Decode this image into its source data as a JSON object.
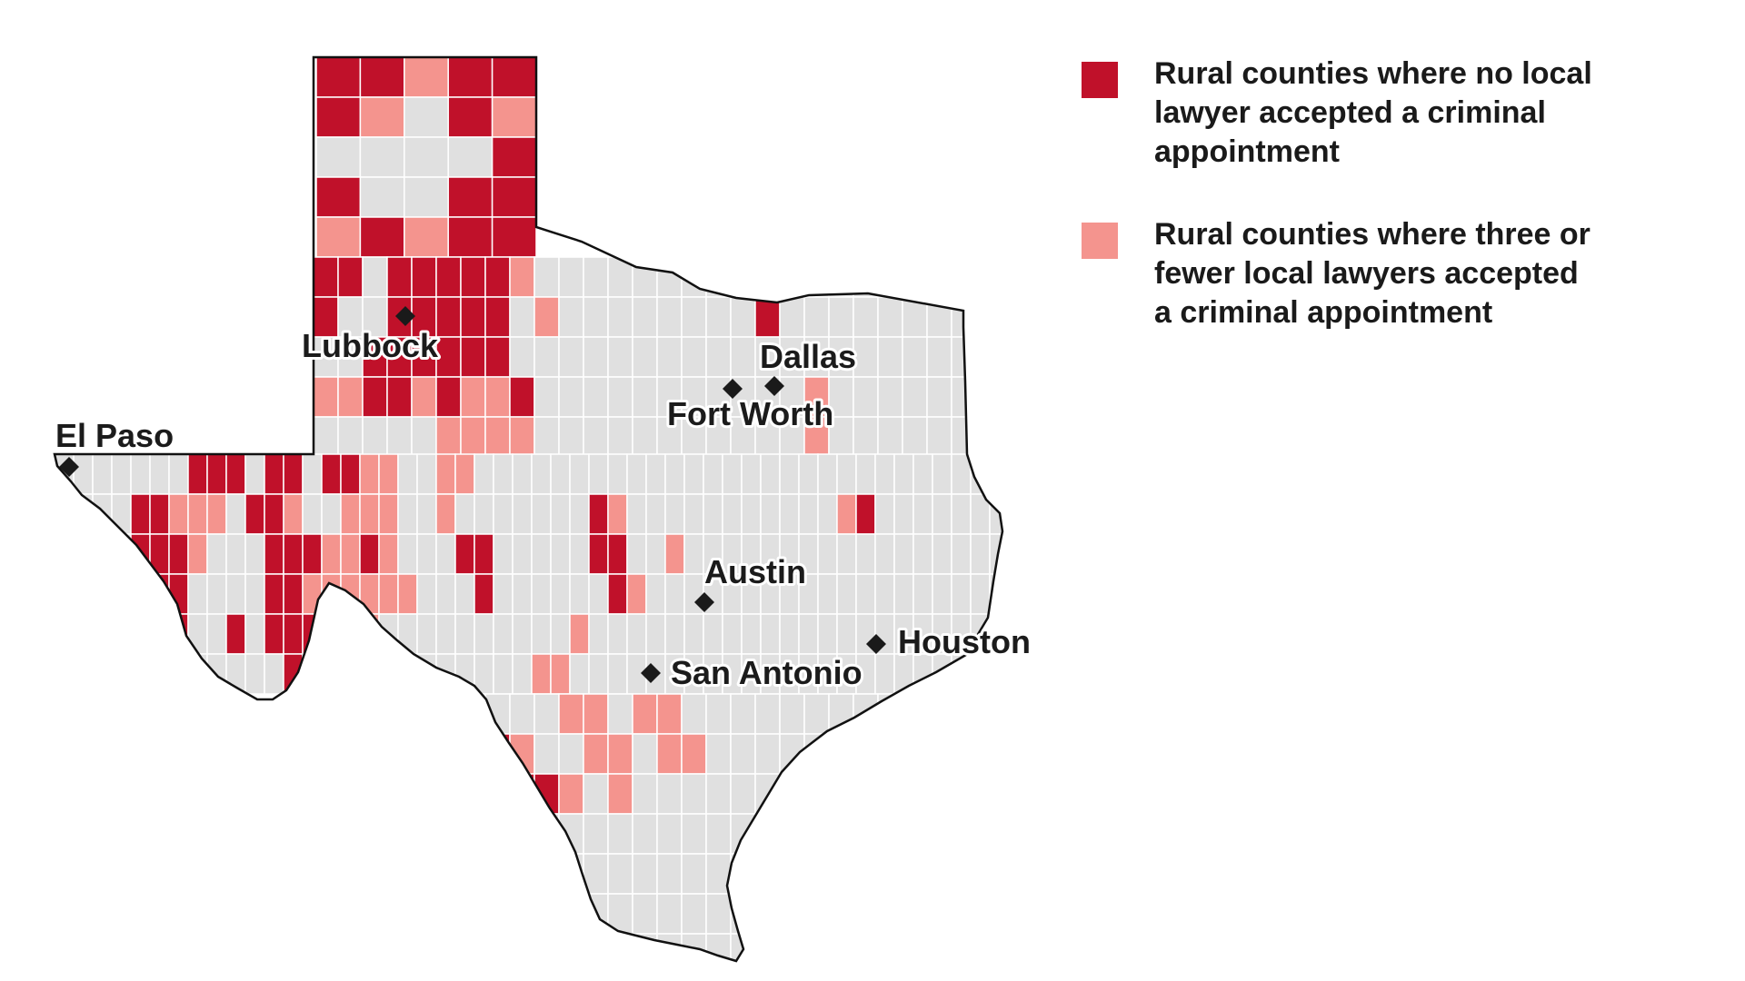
{
  "colors": {
    "none": "#c0112a",
    "few": "#f4948e",
    "other": "#e0e0e0",
    "outline": "#111111",
    "county_border": "#ffffff",
    "marker": "#1a1a1a"
  },
  "legend": {
    "items": [
      {
        "category": "none",
        "label": "Rural counties where no local\nlawyer accepted a criminal\nappointment"
      },
      {
        "category": "few",
        "label": "Rural counties where three or\nfewer local lawyers accepted\na criminal appointment"
      }
    ]
  },
  "cities": [
    {
      "name": "Lubbock",
      "label": "Lubbock"
    },
    {
      "name": "El Paso",
      "label": "El Paso"
    },
    {
      "name": "Dallas",
      "label": "Dallas"
    },
    {
      "name": "Fort Worth",
      "label": "Fort Worth"
    },
    {
      "name": "Austin",
      "label": "Austin"
    },
    {
      "name": "Houston",
      "label": "Houston"
    },
    {
      "name": "San Antonio",
      "label": "San Antonio"
    }
  ],
  "map_categories": [
    "none",
    "few",
    "other"
  ]
}
